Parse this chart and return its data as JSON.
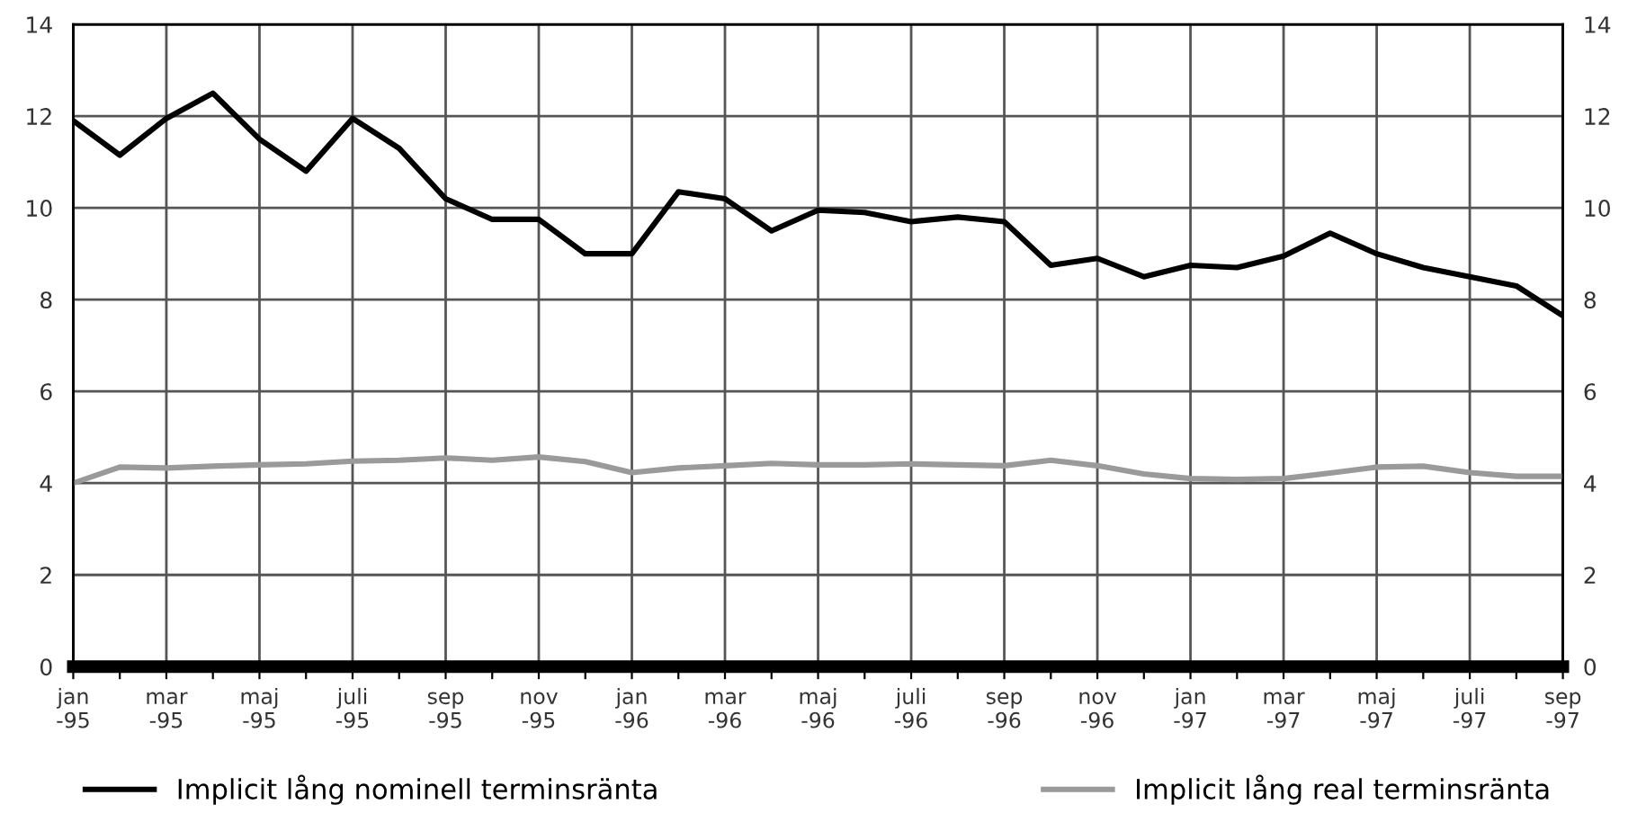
{
  "chart_data": {
    "type": "line",
    "categories": [
      "jan\n-95",
      null,
      "mar\n-95",
      null,
      "maj\n-95",
      null,
      "juli\n-95",
      null,
      "sep\n-95",
      null,
      "nov\n-95",
      null,
      "jan\n-96",
      null,
      "mar\n-96",
      null,
      "maj\n-96",
      null,
      "juli\n-96",
      null,
      "sep\n-96",
      null,
      "nov\n-96",
      null,
      "jan\n-97",
      null,
      "mar\n-97",
      null,
      "maj\n-97",
      null,
      "juli\n-97",
      null,
      "sep\n-97"
    ],
    "series": [
      {
        "name": "Implicit lång nominell terminsränta",
        "color": "#000000",
        "values": [
          11.9,
          11.15,
          11.95,
          12.5,
          11.5,
          10.8,
          11.95,
          11.3,
          10.2,
          9.75,
          9.75,
          9.0,
          9.0,
          10.35,
          10.2,
          9.5,
          9.95,
          9.9,
          9.7,
          9.8,
          9.7,
          8.75,
          8.9,
          8.5,
          8.75,
          8.7,
          8.95,
          9.45,
          9.0,
          8.7,
          8.5,
          8.3,
          7.65
        ]
      },
      {
        "name": "Implicit lång real terminsränta",
        "color": "#9a9a9a",
        "values": [
          4.0,
          4.35,
          4.33,
          4.37,
          4.4,
          4.42,
          4.48,
          4.5,
          4.55,
          4.5,
          4.57,
          4.47,
          4.23,
          4.33,
          4.38,
          4.43,
          4.4,
          4.4,
          4.42,
          4.4,
          4.38,
          4.5,
          4.38,
          4.2,
          4.1,
          4.08,
          4.1,
          4.22,
          4.35,
          4.37,
          4.23,
          4.15,
          4.15
        ]
      }
    ],
    "ylim": [
      0,
      14
    ],
    "yticks": [
      0,
      2,
      4,
      6,
      8,
      10,
      12,
      14
    ],
    "y2lim": [
      0,
      14
    ],
    "y2ticks": [
      0,
      2,
      4,
      6,
      8,
      10,
      12,
      14
    ],
    "grid": true,
    "legend": "bottom",
    "marker": "none",
    "line_style": "solid"
  }
}
